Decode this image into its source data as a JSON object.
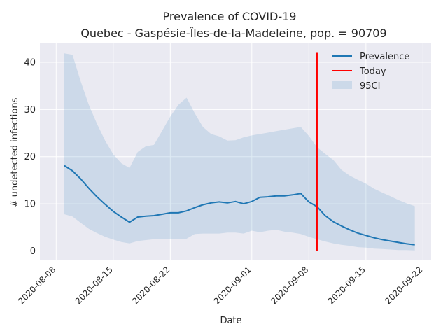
{
  "chart_data": {
    "type": "line",
    "title": "Prevalence of COVID-19",
    "subtitle": "Quebec - Gaspésie-Îles-de-la-Madeleine, pop. = 90709",
    "xlabel": "Date",
    "ylabel": "# undetected infections",
    "x_axis": "date",
    "xlim": [
      "2020-08-06",
      "2020-09-23"
    ],
    "ylim": [
      -2,
      44
    ],
    "xticks": [
      "2020-08-08",
      "2020-08-15",
      "2020-08-22",
      "2020-09-01",
      "2020-09-08",
      "2020-09-15",
      "2020-09-22"
    ],
    "yticks": [
      0,
      10,
      20,
      30,
      40
    ],
    "grid": true,
    "legend_position": "top-right",
    "colors": {
      "background": "#eaeaf2",
      "grid": "#ffffff",
      "prevalence": "#1f77b4",
      "today": "#ff0000",
      "ci": "#1f77b4"
    },
    "dates": [
      "2020-08-09",
      "2020-08-10",
      "2020-08-11",
      "2020-08-12",
      "2020-08-13",
      "2020-08-14",
      "2020-08-15",
      "2020-08-16",
      "2020-08-17",
      "2020-08-18",
      "2020-08-19",
      "2020-08-20",
      "2020-08-21",
      "2020-08-22",
      "2020-08-23",
      "2020-08-24",
      "2020-08-25",
      "2020-08-26",
      "2020-08-27",
      "2020-08-28",
      "2020-08-29",
      "2020-08-30",
      "2020-08-31",
      "2020-09-01",
      "2020-09-02",
      "2020-09-03",
      "2020-09-04",
      "2020-09-05",
      "2020-09-06",
      "2020-09-07",
      "2020-09-08",
      "2020-09-09",
      "2020-09-10",
      "2020-09-11",
      "2020-09-12",
      "2020-09-13",
      "2020-09-14",
      "2020-09-15",
      "2020-09-16",
      "2020-09-17",
      "2020-09-18",
      "2020-09-19",
      "2020-09-20",
      "2020-09-21"
    ],
    "series": [
      {
        "name": "Prevalence",
        "values": [
          18.1,
          17.0,
          15.3,
          13.3,
          11.5,
          9.9,
          8.4,
          7.2,
          6.1,
          7.2,
          7.4,
          7.5,
          7.8,
          8.1,
          8.1,
          8.5,
          9.2,
          9.8,
          10.2,
          10.4,
          10.2,
          10.5,
          10.0,
          10.5,
          11.4,
          11.5,
          11.7,
          11.7,
          11.9,
          12.2,
          10.4,
          9.4,
          7.5,
          6.2,
          5.3,
          4.5,
          3.8,
          3.3,
          2.8,
          2.4,
          2.1,
          1.8,
          1.5,
          1.3
        ]
      },
      {
        "name": "95CI",
        "lower": [
          7.8,
          7.3,
          6.0,
          4.7,
          3.8,
          3.0,
          2.4,
          1.9,
          1.6,
          2.1,
          2.3,
          2.5,
          2.6,
          2.6,
          2.6,
          2.6,
          3.6,
          3.7,
          3.7,
          3.7,
          3.9,
          3.9,
          3.7,
          4.3,
          4.0,
          4.3,
          4.5,
          4.1,
          3.9,
          3.6,
          3.0,
          2.5,
          2.0,
          1.6,
          1.3,
          1.1,
          0.8,
          0.7,
          0.5,
          0.4,
          0.3,
          0.2,
          0.2,
          0.1
        ],
        "upper": [
          41.9,
          41.6,
          36.0,
          31.0,
          27.0,
          23.4,
          20.5,
          18.6,
          17.6,
          21.0,
          22.2,
          22.5,
          25.5,
          28.5,
          31.0,
          32.5,
          29.2,
          26.3,
          24.8,
          24.3,
          23.4,
          23.5,
          24.1,
          24.5,
          24.8,
          25.1,
          25.4,
          25.7,
          26.0,
          26.3,
          24.4,
          22.0,
          20.6,
          19.3,
          17.2,
          16.0,
          15.1,
          14.3,
          13.2,
          12.4,
          11.6,
          10.8,
          10.1,
          9.5
        ]
      }
    ],
    "today": {
      "name": "Today",
      "date": "2020-09-09",
      "y_range": [
        0,
        42
      ]
    },
    "legend": [
      "Prevalence",
      "Today",
      "95CI"
    ]
  }
}
